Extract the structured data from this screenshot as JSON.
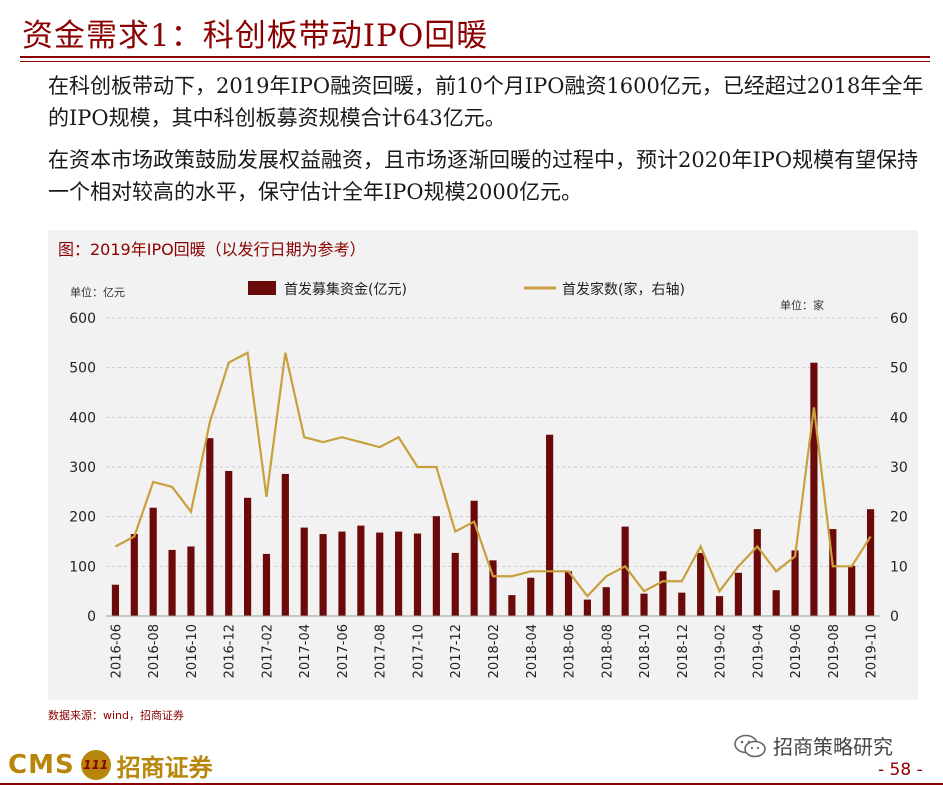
{
  "header": {
    "title": "资金需求1：科创板带动IPO回暖"
  },
  "body": {
    "paragraph1": "在科创板带动下，2019年IPO融资回暖，前10个月IPO融资1600亿元，已经超过2018年全年的IPO规模，其中科创板募资规模合计643亿元。",
    "paragraph2": "在资本市场政策鼓励发展权益融资，且市场逐渐回暖的过程中，预计2020年IPO规模有望保持一个相对较高的水平，保守估计全年IPO规模2000亿元。"
  },
  "chart_data": {
    "type": "bar+line",
    "title": "图：2019年IPO回暖（以发行日期为参考）",
    "left_unit": "单位：亿元",
    "right_unit": "单位：家",
    "legend": [
      "首发募集资金(亿元)",
      "首发家数(家，右轴)"
    ],
    "legend_position": "top",
    "y_left_lim": [
      0,
      600
    ],
    "y_left_ticks": [
      "0",
      "100",
      "200",
      "300",
      "400",
      "500",
      "600"
    ],
    "y_right_lim": [
      0,
      60
    ],
    "y_right_ticks": [
      "0",
      "10",
      "20",
      "30",
      "40",
      "50",
      "60"
    ],
    "categories": [
      "2016-06",
      "2016-07",
      "2016-08",
      "2016-09",
      "2016-10",
      "2016-11",
      "2016-12",
      "2017-01",
      "2017-02",
      "2017-03",
      "2017-04",
      "2017-05",
      "2017-06",
      "2017-07",
      "2017-08",
      "2017-09",
      "2017-10",
      "2017-11",
      "2017-12",
      "2018-01",
      "2018-02",
      "2018-03",
      "2018-04",
      "2018-05",
      "2018-06",
      "2018-07",
      "2018-08",
      "2018-09",
      "2018-10",
      "2018-11",
      "2018-12",
      "2019-01",
      "2019-02",
      "2019-03",
      "2019-04",
      "2019-05",
      "2019-06",
      "2019-07",
      "2019-08",
      "2019-09",
      "2019-10"
    ],
    "x_tick_labels": [
      "2016-06",
      "2016-08",
      "2016-10",
      "2016-12",
      "2017-02",
      "2017-04",
      "2017-06",
      "2017-08",
      "2017-10",
      "2017-12",
      "2018-02",
      "2018-04",
      "2018-06",
      "2018-08",
      "2018-10",
      "2018-12",
      "2019-02",
      "2019-04",
      "2019-06",
      "2019-08",
      "2019-10"
    ],
    "series": [
      {
        "name": "首发募集资金(亿元)",
        "axis": "left",
        "color": "#6b0a0a",
        "values": [
          63,
          165,
          218,
          133,
          140,
          358,
          292,
          238,
          125,
          286,
          178,
          165,
          170,
          182,
          168,
          170,
          166,
          201,
          127,
          232,
          112,
          42,
          77,
          365,
          90,
          33,
          58,
          180,
          45,
          90,
          47,
          127,
          40,
          87,
          175,
          52,
          132,
          510,
          175,
          101,
          215
        ]
      },
      {
        "name": "首发家数(家，右轴)",
        "axis": "right",
        "color": "#c8a03c",
        "values": [
          14,
          16,
          27,
          26,
          21,
          39,
          51,
          53,
          24,
          53,
          36,
          35,
          36,
          35,
          34,
          36,
          30,
          30,
          17,
          19,
          8,
          8,
          9,
          9,
          9,
          4,
          8,
          10,
          5,
          7,
          7,
          14,
          5,
          10,
          14,
          9,
          12,
          42,
          10,
          10,
          16
        ]
      }
    ]
  },
  "footer": {
    "source": "数据来源：wind，招商证券",
    "logo_text_en": "CMS",
    "logo_badge": "111",
    "logo_text_cn": "招商证券",
    "wechat_label": "招商策略研究",
    "page": "- 58 -"
  },
  "colors": {
    "brand": "#8b0000",
    "gold": "#b8860b"
  }
}
